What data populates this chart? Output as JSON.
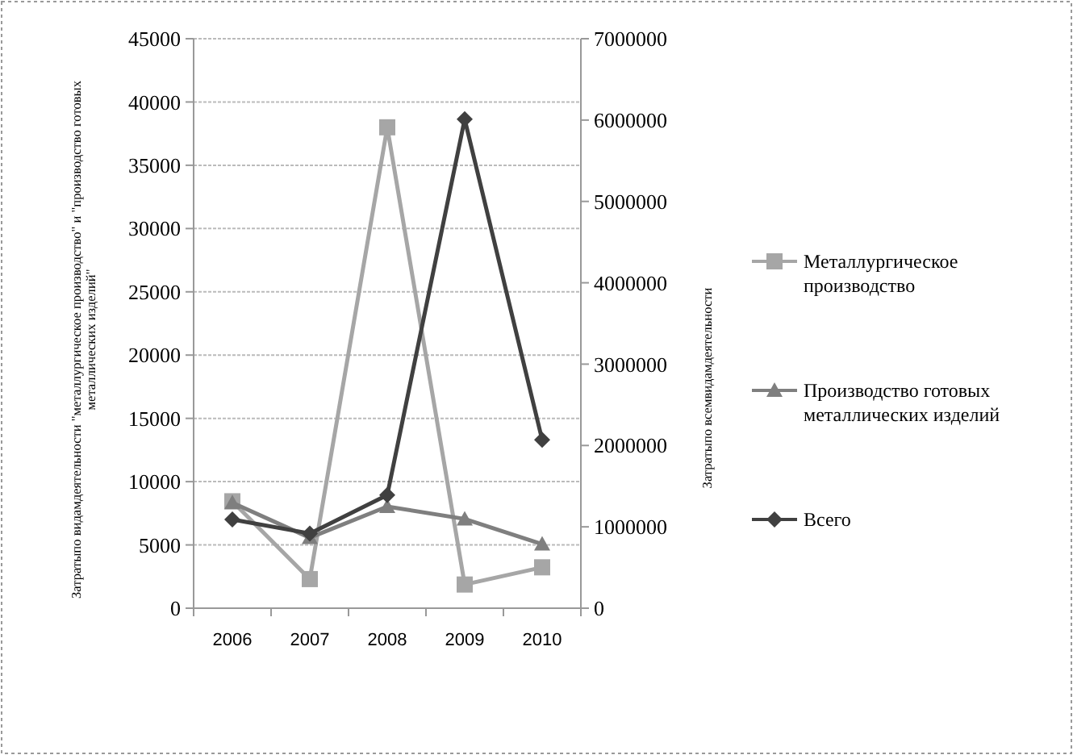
{
  "chart_data": {
    "type": "line",
    "categories": [
      "2006",
      "2007",
      "2008",
      "2009",
      "2010"
    ],
    "ylabel": "Затратыпо видамдеятельности \"металлургическое производство\" и \"производство готовых металлических изделий\"",
    "y2label": "Затратыпо всемвидамдеятельности",
    "ylim": [
      0,
      45000
    ],
    "yticks": [
      0,
      5000,
      10000,
      15000,
      20000,
      25000,
      30000,
      35000,
      40000,
      45000
    ],
    "y2lim": [
      0,
      7000000
    ],
    "y2ticks": [
      0,
      1000000,
      2000000,
      3000000,
      4000000,
      5000000,
      6000000,
      7000000
    ],
    "grid": "y",
    "legend": "right",
    "series": [
      {
        "name": "Металлургическое производство",
        "color": "#a6a6a6",
        "marker": "square",
        "values": [
          8450,
          2300,
          38000,
          1870,
          3230
        ]
      },
      {
        "name": "Производство готовых металлических изделий",
        "color": "#7f7f7f",
        "marker": "triangle",
        "values": [
          8330,
          5570,
          8030,
          7050,
          5060
        ]
      },
      {
        "name": "Всего",
        "color": "#404040",
        "marker": "diamond",
        "axis": "y2",
        "values": [
          1090000,
          918000,
          1390000,
          6010000,
          2070000
        ]
      }
    ]
  }
}
